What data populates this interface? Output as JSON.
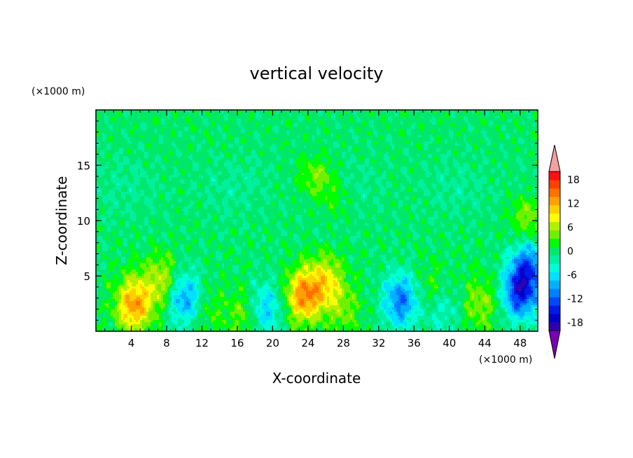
{
  "chart_data": {
    "type": "heatmap",
    "title": "vertical velocity",
    "xlabel": "X-coordinate",
    "ylabel": "Z-coordinate",
    "x_unit": "(×1000 m)",
    "z_unit": "(×1000 m)",
    "xlim": [
      0,
      50
    ],
    "ylim": [
      0,
      20
    ],
    "x_ticks": [
      4,
      8,
      12,
      16,
      20,
      24,
      28,
      32,
      36,
      40,
      44,
      48
    ],
    "y_ticks": [
      5,
      10,
      15
    ],
    "colorbar": {
      "min": -20,
      "max": 20,
      "step": 2,
      "tick_values": [
        18,
        12,
        6,
        0,
        -6,
        -12,
        -18
      ],
      "colors": [
        "#7a00b0",
        "#3000b0",
        "#0000c8",
        "#0018e8",
        "#0048ff",
        "#0080ff",
        "#00b0ff",
        "#00e0ff",
        "#00ffd8",
        "#00f0a0",
        "#00e86c",
        "#00ff00",
        "#70f000",
        "#b0f000",
        "#ffff00",
        "#ffd000",
        "#ffa000",
        "#ff7000",
        "#ff4000",
        "#ff1010",
        "#f4a0a0"
      ]
    },
    "features": [
      {
        "x": 4.3,
        "z": 2.4,
        "value": 13
      },
      {
        "x": 7.5,
        "z": 4.5,
        "value": 7
      },
      {
        "x": 10,
        "z": 3,
        "value": -10
      },
      {
        "x": 12.5,
        "z": 2,
        "value": 3
      },
      {
        "x": 17,
        "z": 1.5,
        "value": 5
      },
      {
        "x": 19,
        "z": 2,
        "value": -8
      },
      {
        "x": 23.5,
        "z": 3.2,
        "value": 13
      },
      {
        "x": 26,
        "z": 4.5,
        "value": 8
      },
      {
        "x": 28,
        "z": 2,
        "value": 4
      },
      {
        "x": 34.5,
        "z": 2.8,
        "value": -11
      },
      {
        "x": 38,
        "z": 3.5,
        "value": 4
      },
      {
        "x": 39,
        "z": 2,
        "value": -5
      },
      {
        "x": 43.5,
        "z": 2.5,
        "value": 5
      },
      {
        "x": 48,
        "z": 3.5,
        "value": -14
      },
      {
        "x": 49,
        "z": 6,
        "value": -10
      },
      {
        "x": 25,
        "z": 14,
        "value": 5
      },
      {
        "x": 49,
        "z": 10.5,
        "value": 5
      },
      {
        "x": 27,
        "z": 12,
        "value": 3
      }
    ]
  }
}
